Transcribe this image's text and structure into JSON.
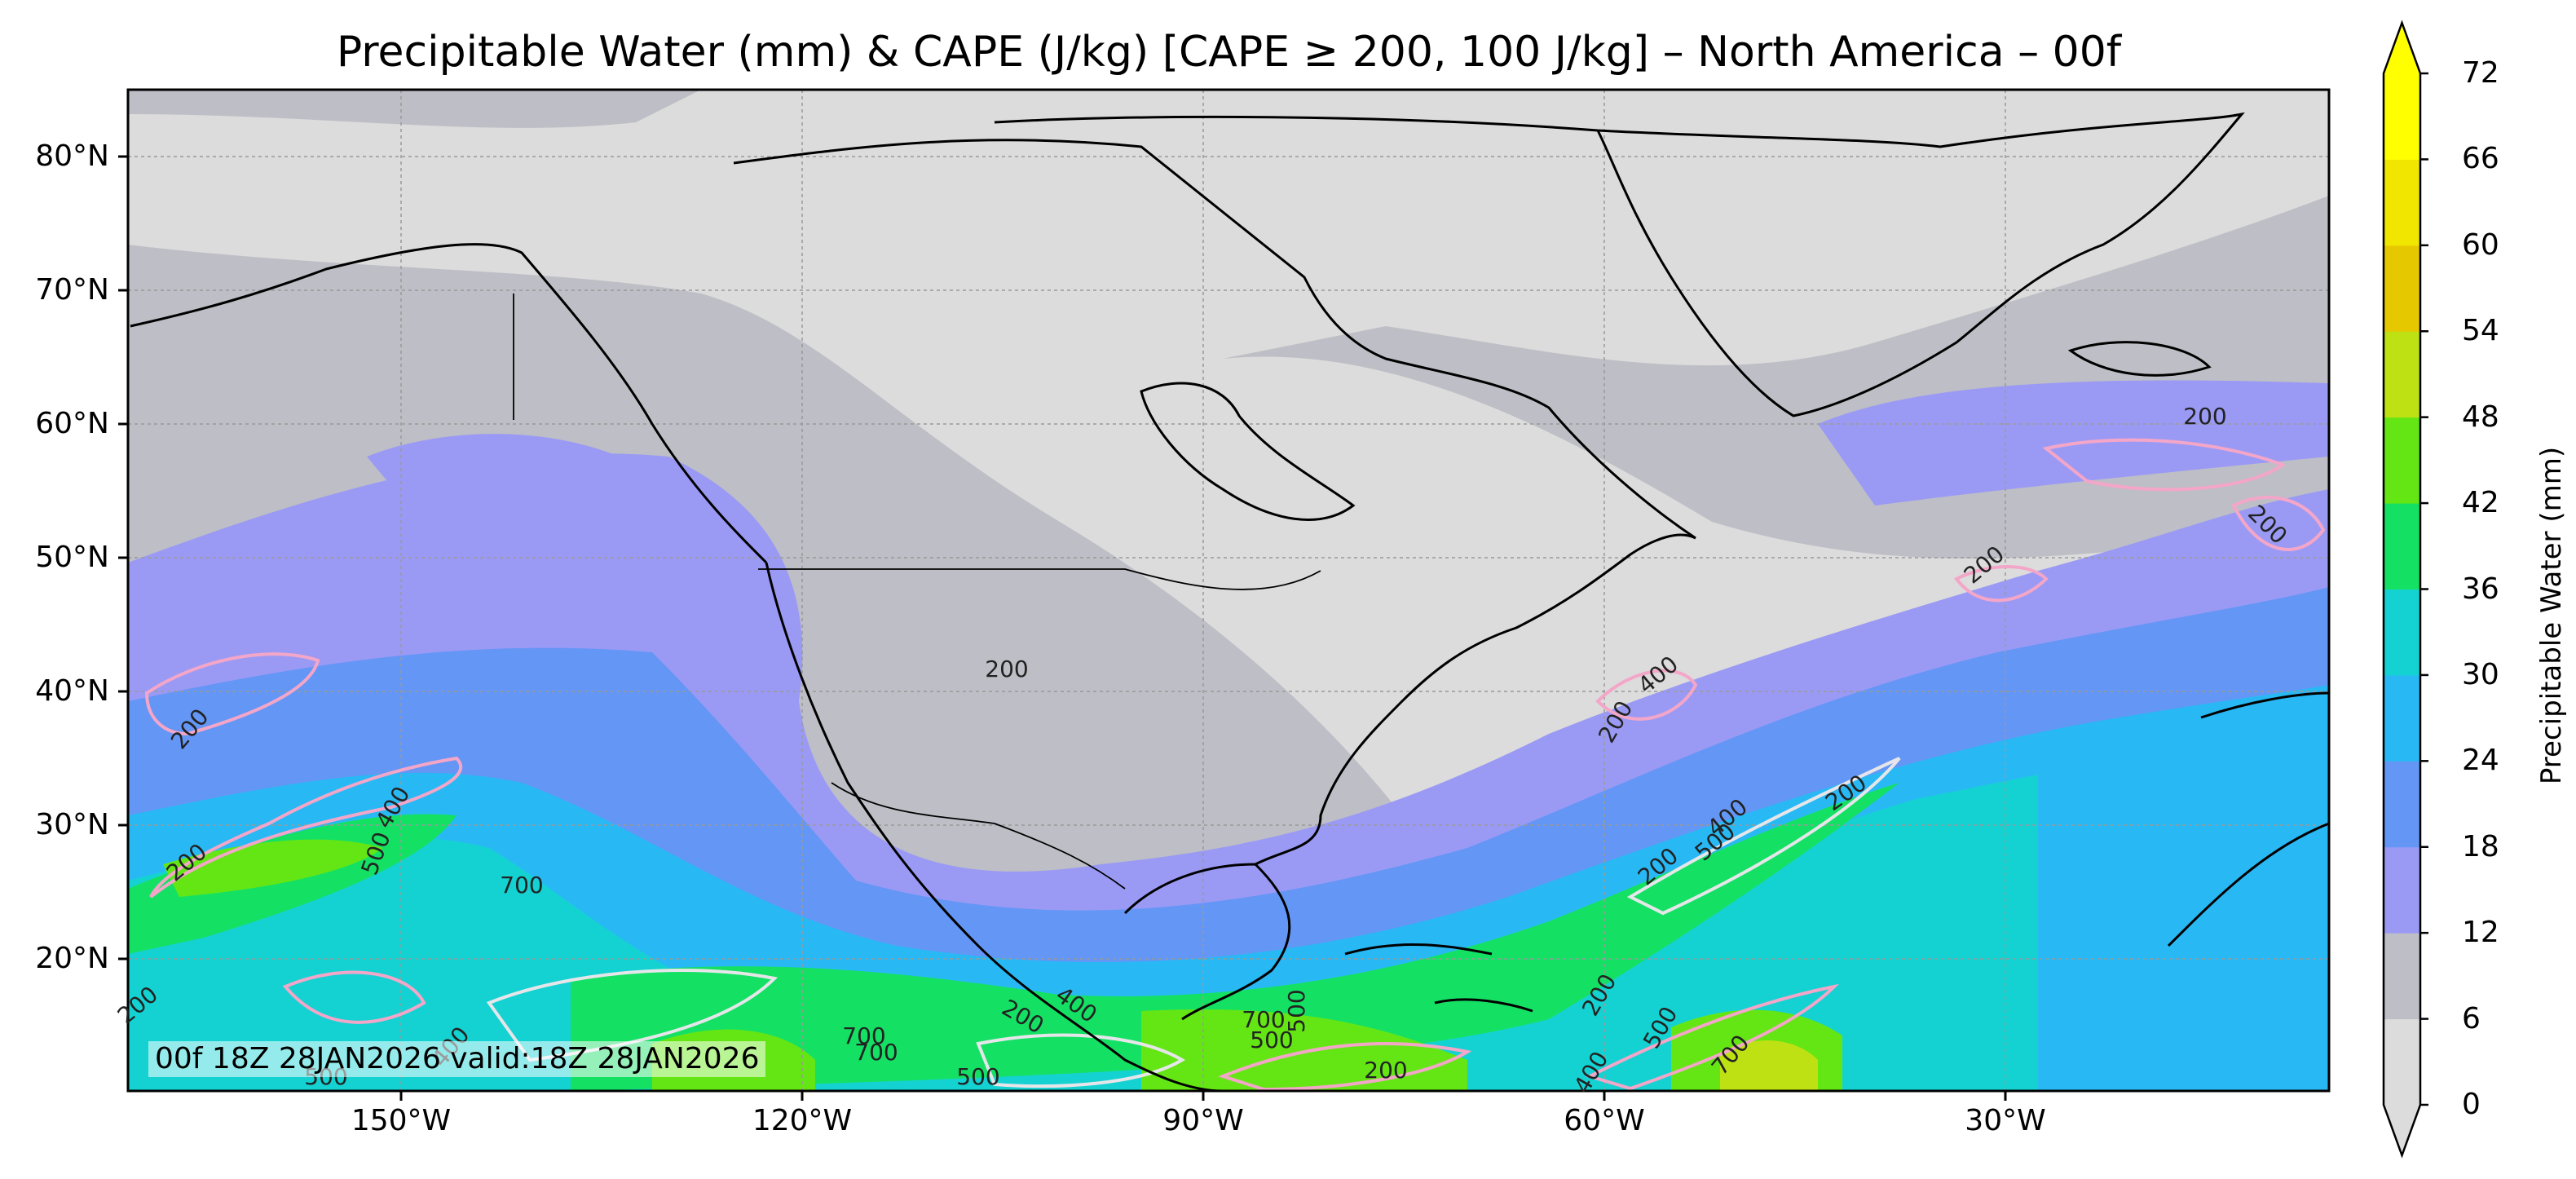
{
  "title": "Precipitable Water (mm) & CAPE (J/kg) [CAPE ≥ 200, 100 J/kg] – North America – 00f",
  "run_info": "00f 18Z 28JAN2026 valid:18Z 28JAN2026",
  "lat_labels": [
    "80°N",
    "70°N",
    "60°N",
    "50°N",
    "40°N",
    "30°N",
    "20°N"
  ],
  "lon_labels": [
    "150°W",
    "120°W",
    "90°W",
    "60°W",
    "30°W"
  ],
  "colorbar": {
    "label": "Precipitable Water (mm)",
    "ticks": [
      "0",
      "6",
      "12",
      "18",
      "24",
      "30",
      "36",
      "42",
      "48",
      "54",
      "60",
      "66",
      "72"
    ],
    "colors": [
      "#dcdcdc",
      "#bebec6",
      "#9a9af5",
      "#6496f5",
      "#28b9f5",
      "#14d2d2",
      "#14e164",
      "#64e614",
      "#bee114",
      "#e6c800",
      "#f0e600",
      "#ffff00"
    ],
    "extend": "both"
  },
  "contour_labels": [
    "200",
    "200",
    "400",
    "200",
    "200",
    "200",
    "500",
    "400",
    "200",
    "700",
    "500",
    "400",
    "400",
    "500",
    "200",
    "700",
    "200",
    "500",
    "200",
    "400",
    "200",
    "500",
    "700",
    "200",
    "200",
    "400",
    "700",
    "500",
    "200",
    "500",
    "700"
  ],
  "colors": {
    "cape_contour": "#f4a6c8",
    "cape_contour_high": "#e6e6ea",
    "coastline": "#000000"
  }
}
